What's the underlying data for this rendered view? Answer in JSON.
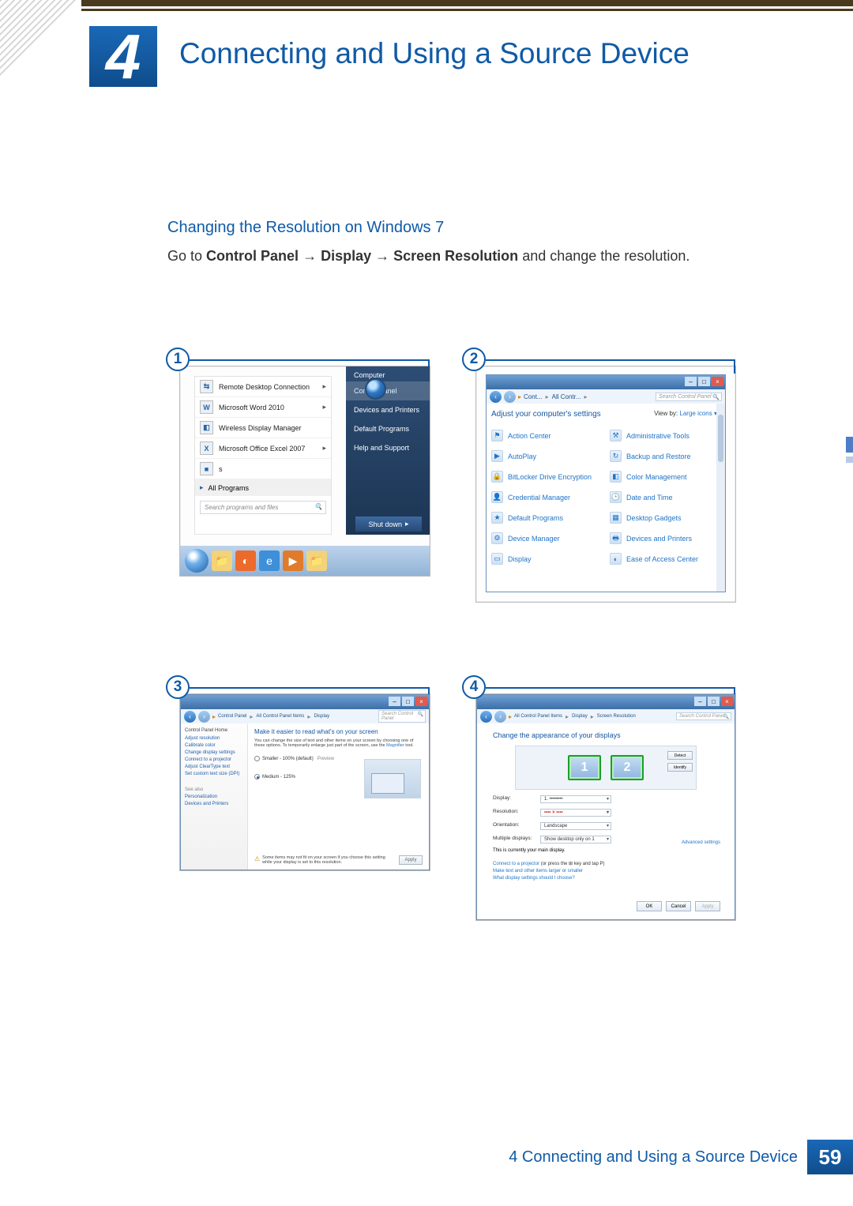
{
  "chapter": {
    "number": "4",
    "title": "Connecting and Using a Source Device"
  },
  "section": {
    "heading": "Changing the Resolution on Windows 7"
  },
  "instruction": {
    "prefix": "Go to ",
    "b1": "Control Panel",
    "arrow": " → ",
    "b2": "Display",
    "b3": "Screen Resolution",
    "suffix": " and change the resolution."
  },
  "panels": {
    "p1": {
      "num": "1",
      "start_items": [
        {
          "icon": "⇆",
          "label": "Remote Desktop Connection",
          "arrow": "▸"
        },
        {
          "icon": "W",
          "label": "Microsoft Word 2010",
          "arrow": "▸"
        },
        {
          "icon": "◧",
          "label": "Wireless Display Manager",
          "arrow": ""
        },
        {
          "icon": "X",
          "label": "Microsoft Office Excel 2007",
          "arrow": "▸"
        },
        {
          "icon": "■",
          "label": "s",
          "arrow": ""
        }
      ],
      "all_programs": "All Programs",
      "search_placeholder": "Search programs and files",
      "right_header": "Computer",
      "right_items": [
        "Control Panel",
        "Devices and Printers",
        "Default Programs",
        "Help and Support"
      ],
      "shutdown": "Shut down",
      "taskbar_icons": [
        "orb",
        "folder",
        "media",
        "ie",
        "shield",
        "folder2"
      ]
    },
    "p2": {
      "num": "2",
      "crumbs": [
        "Cont...",
        "All Contr..."
      ],
      "addr_search_ph": "Search Control Panel",
      "head": "Adjust your computer's settings",
      "viewby_label": "View by:",
      "viewby_value": "Large icons",
      "items_left": [
        "Action Center",
        "AutoPlay",
        "BitLocker Drive Encryption",
        "Credential Manager",
        "Default Programs",
        "Device Manager",
        "Display"
      ],
      "items_right": [
        "Administrative Tools",
        "Backup and Restore",
        "Color Management",
        "Date and Time",
        "Desktop Gadgets",
        "Devices and Printers",
        "Ease of Access Center"
      ],
      "icon_glyphs_left": [
        "⚑",
        "▶",
        "🔒",
        "👤",
        "★",
        "⚙",
        "▭"
      ],
      "icon_glyphs_right": [
        "⚒",
        "↻",
        "◧",
        "🕒",
        "▦",
        "🖶",
        "◐"
      ]
    },
    "p3": {
      "num": "3",
      "crumbs": [
        "Control Panel",
        "All Control Panel Items",
        "Display"
      ],
      "addr_search_ph": "Search Control Panel",
      "side_header": "Control Panel Home",
      "side_links": [
        "Adjust resolution",
        "Calibrate color",
        "Change display settings",
        "Connect to a projector",
        "Adjust ClearType text",
        "Set custom text size (DPI)"
      ],
      "see_also": "See also",
      "see_also_links": [
        "Personalization",
        "Devices and Printers"
      ],
      "main_title": "Make it easier to read what's on your screen",
      "main_desc": "You can change the size of text and other items on your screen by choosing one of these options. To temporarily enlarge just part of the screen, use the ",
      "main_desc_link": "Magnifier",
      "main_desc_tail": " tool.",
      "radio1": "Smaller - 100% (default)",
      "radio1_tail": "Preview",
      "radio2": "Medium - 125%",
      "warn_text": "Some items may not fit on your screen if you choose this setting while your display is set to this resolution.",
      "apply": "Apply"
    },
    "p4": {
      "num": "4",
      "crumbs": [
        "All Control Panel Items",
        "Display",
        "Screen Resolution"
      ],
      "addr_search_ph": "Search Control Panel",
      "title": "Change the appearance of your displays",
      "mon1": "1",
      "mon2": "2",
      "btn_detect": "Detect",
      "btn_identify": "Identify",
      "fields": {
        "display_label": "Display:",
        "display_value": "1. ••••••••",
        "res_label": "Resolution:",
        "res_value": "•••• × ••••",
        "orient_label": "Orientation:",
        "orient_value": "Landscape",
        "multi_label": "Multiple displays:",
        "multi_value": "Show desktop only on 1"
      },
      "current": "This is currently your main display.",
      "advanced": "Advanced settings",
      "link1_a": "Connect to a projector",
      "link1_b": " (or press the ⊞ key and tap P)",
      "link2": "Make text and other items larger or smaller",
      "link3": "What display settings should I choose?",
      "ok": "OK",
      "cancel": "Cancel",
      "apply": "Apply"
    }
  },
  "footer": {
    "text": "4 Connecting and Using a Source Device",
    "page": "59"
  }
}
